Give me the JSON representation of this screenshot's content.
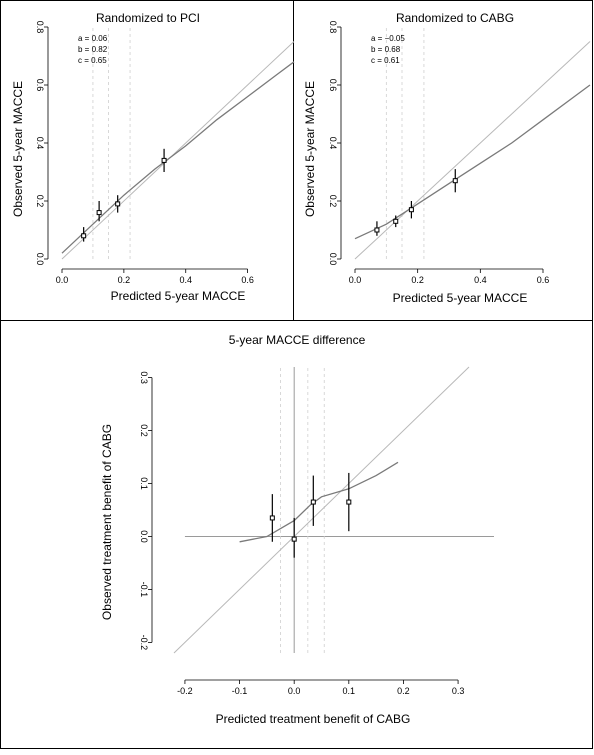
{
  "chart_data": [
    {
      "type": "scatter",
      "title": "Randomized to PCI",
      "xlabel": "Predicted 5-year MACCE",
      "ylabel": "Observed 5-year MACCE",
      "xlim": [
        0,
        0.75
      ],
      "ylim": [
        0,
        0.8
      ],
      "xticks": [
        0.0,
        0.2,
        0.4,
        0.6
      ],
      "yticks": [
        0.0,
        0.2,
        0.4,
        0.6,
        0.8
      ],
      "annotations": [
        "a = 0.06",
        "b = 0.82",
        "c = 0.65"
      ],
      "cutoffs": [
        0.1,
        0.15,
        0.22
      ],
      "grouped_points": [
        {
          "x": 0.07,
          "y": 0.08,
          "lower": 0.06,
          "upper": 0.11
        },
        {
          "x": 0.12,
          "y": 0.16,
          "lower": 0.13,
          "upper": 0.2
        },
        {
          "x": 0.18,
          "y": 0.19,
          "lower": 0.16,
          "upper": 0.22
        },
        {
          "x": 0.33,
          "y": 0.34,
          "lower": 0.3,
          "upper": 0.38
        }
      ],
      "smooth_curve": {
        "x": [
          0.0,
          0.1,
          0.2,
          0.3,
          0.4,
          0.5,
          0.6,
          0.7,
          0.75
        ],
        "y": [
          0.02,
          0.12,
          0.22,
          0.31,
          0.39,
          0.48,
          0.56,
          0.64,
          0.68
        ]
      },
      "reference_line": "y = x"
    },
    {
      "type": "scatter",
      "title": "Randomized to CABG",
      "xlabel": "Predicted 5-year MACCE",
      "ylabel": "Observed 5-year MACCE",
      "xlim": [
        0,
        0.75
      ],
      "ylim": [
        0,
        0.8
      ],
      "xticks": [
        0.0,
        0.2,
        0.4,
        0.6
      ],
      "yticks": [
        0.0,
        0.2,
        0.4,
        0.6,
        0.8
      ],
      "annotations": [
        "a = −0.05",
        "b = 0.68",
        "c = 0.61"
      ],
      "cutoffs": [
        0.1,
        0.15,
        0.22
      ],
      "grouped_points": [
        {
          "x": 0.07,
          "y": 0.1,
          "lower": 0.08,
          "upper": 0.13
        },
        {
          "x": 0.13,
          "y": 0.13,
          "lower": 0.11,
          "upper": 0.15
        },
        {
          "x": 0.18,
          "y": 0.17,
          "lower": 0.14,
          "upper": 0.2
        },
        {
          "x": 0.32,
          "y": 0.27,
          "lower": 0.23,
          "upper": 0.31
        }
      ],
      "smooth_curve": {
        "x": [
          0.0,
          0.1,
          0.2,
          0.3,
          0.4,
          0.5,
          0.6,
          0.7,
          0.75
        ],
        "y": [
          0.07,
          0.12,
          0.19,
          0.26,
          0.33,
          0.4,
          0.48,
          0.56,
          0.6
        ]
      },
      "reference_line": "y = x"
    },
    {
      "type": "scatter",
      "title": "5-year MACCE difference",
      "xlabel": "Predicted treatment benefit of CABG",
      "ylabel": "Observed treatment benefit of CABG",
      "xlim": [
        -0.22,
        0.32
      ],
      "ylim": [
        -0.22,
        0.32
      ],
      "xticks": [
        -0.2,
        -0.1,
        0.0,
        0.1,
        0.2,
        0.3
      ],
      "yticks": [
        -0.2,
        -0.1,
        0.0,
        0.1,
        0.2,
        0.3
      ],
      "cutoffs": [
        -0.025,
        0.025,
        0.055
      ],
      "grouped_points": [
        {
          "x": -0.04,
          "y": 0.035,
          "lower": -0.01,
          "upper": 0.08
        },
        {
          "x": 0.0,
          "y": -0.005,
          "lower": -0.04,
          "upper": 0.035
        },
        {
          "x": 0.035,
          "y": 0.065,
          "lower": 0.02,
          "upper": 0.115
        },
        {
          "x": 0.1,
          "y": 0.065,
          "lower": 0.01,
          "upper": 0.12
        }
      ],
      "smooth_curve": {
        "x": [
          -0.1,
          -0.05,
          0.0,
          0.03,
          0.05,
          0.1,
          0.15,
          0.19
        ],
        "y": [
          -0.01,
          0.0,
          0.03,
          0.06,
          0.075,
          0.09,
          0.115,
          0.14
        ]
      },
      "reference_line": "y = x"
    }
  ]
}
